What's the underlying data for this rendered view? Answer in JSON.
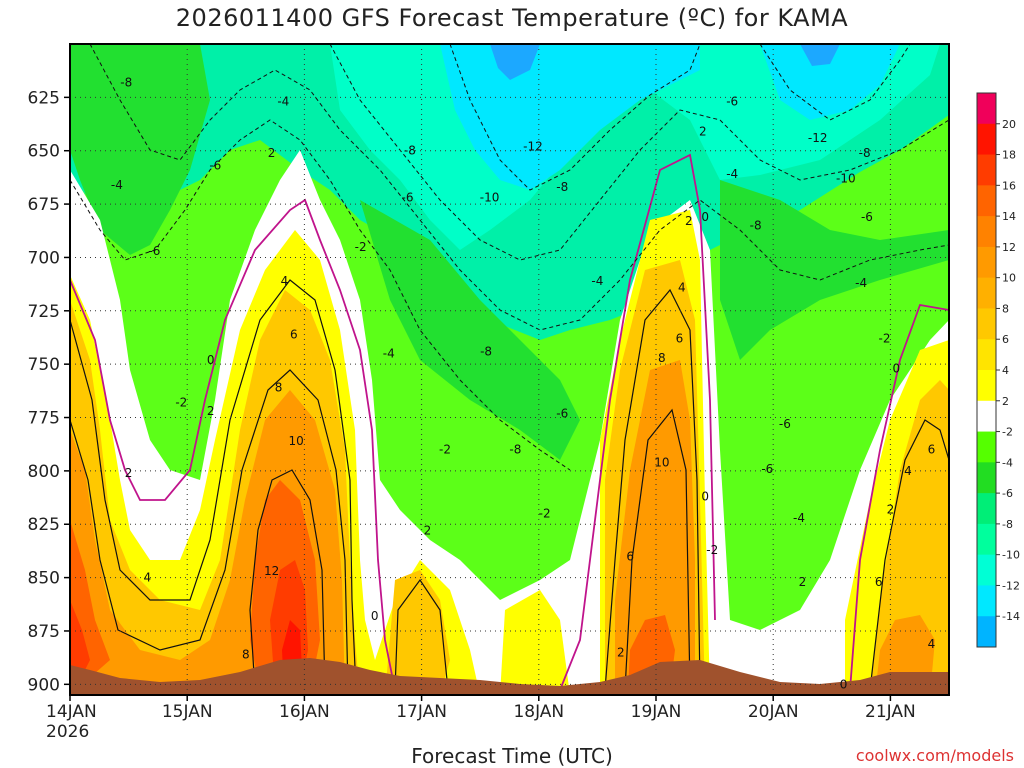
{
  "chart_data": {
    "type": "heatmap",
    "title": "2026011400 GFS Forecast Temperature (ºC) for KAMA",
    "xlabel": "Forecast Time (UTC)",
    "ylabel": "",
    "x_ticks": [
      "14JAN",
      "15JAN",
      "16JAN",
      "17JAN",
      "18JAN",
      "19JAN",
      "20JAN",
      "21JAN"
    ],
    "x_year": "2026",
    "x_range_days": [
      0,
      7.5
    ],
    "y_ticks": [
      625,
      650,
      675,
      700,
      725,
      750,
      775,
      800,
      825,
      850,
      875,
      900
    ],
    "y_range_hpa": [
      600,
      905
    ],
    "colorbar_labels": [
      20,
      18,
      16,
      14,
      12,
      10,
      8,
      6,
      4,
      2,
      -2,
      -4,
      -6,
      -8,
      -10,
      -12,
      -14
    ],
    "colorbar_colors": [
      "#f0005a",
      "#ff1400",
      "#ff3c00",
      "#ff6400",
      "#ff8200",
      "#ff9a00",
      "#ffb000",
      "#ffc800",
      "#ffe400",
      "#ffff00",
      "#ffffff",
      "#55ff00",
      "#22dd22",
      "#00ee77",
      "#00ff9d",
      "#00ffd5",
      "#00e8ff",
      "#00b4ff"
    ],
    "contour_labels": [
      {
        "x": 0.48,
        "y": 618,
        "v": "-8"
      },
      {
        "x": 1.82,
        "y": 627,
        "v": "-4"
      },
      {
        "x": 1.72,
        "y": 651,
        "v": "2"
      },
      {
        "x": 1.24,
        "y": 657,
        "v": "-6"
      },
      {
        "x": 0.4,
        "y": 666,
        "v": "-4"
      },
      {
        "x": 0.72,
        "y": 697,
        "v": "-6"
      },
      {
        "x": 2.48,
        "y": 695,
        "v": "-2"
      },
      {
        "x": 2.9,
        "y": 650,
        "v": "-8"
      },
      {
        "x": 2.88,
        "y": 672,
        "v": "-6"
      },
      {
        "x": 3.58,
        "y": 672,
        "v": "-10"
      },
      {
        "x": 3.95,
        "y": 648,
        "v": "-12"
      },
      {
        "x": 4.2,
        "y": 667,
        "v": "-8"
      },
      {
        "x": 4.5,
        "y": 711,
        "v": "-4"
      },
      {
        "x": 5.65,
        "y": 627,
        "v": "-6"
      },
      {
        "x": 5.4,
        "y": 641,
        "v": "2"
      },
      {
        "x": 5.65,
        "y": 661,
        "v": "-4"
      },
      {
        "x": 5.28,
        "y": 683,
        "v": "2"
      },
      {
        "x": 5.42,
        "y": 681,
        "v": "0"
      },
      {
        "x": 5.85,
        "y": 685,
        "v": "-8"
      },
      {
        "x": 6.38,
        "y": 644,
        "v": "-12"
      },
      {
        "x": 6.78,
        "y": 651,
        "v": "-8"
      },
      {
        "x": 6.62,
        "y": 663,
        "v": "-10"
      },
      {
        "x": 6.8,
        "y": 681,
        "v": "-6"
      },
      {
        "x": 6.75,
        "y": 712,
        "v": "-4"
      },
      {
        "x": 6.95,
        "y": 738,
        "v": "-2"
      },
      {
        "x": 7.05,
        "y": 752,
        "v": "0"
      },
      {
        "x": 1.83,
        "y": 711,
        "v": "4"
      },
      {
        "x": 1.91,
        "y": 736,
        "v": "6"
      },
      {
        "x": 1.78,
        "y": 761,
        "v": "8"
      },
      {
        "x": 1.93,
        "y": 786,
        "v": "10"
      },
      {
        "x": 1.72,
        "y": 847,
        "v": "12"
      },
      {
        "x": 1.5,
        "y": 886,
        "v": "8"
      },
      {
        "x": 1.2,
        "y": 748,
        "v": "0"
      },
      {
        "x": 0.95,
        "y": 768,
        "v": "-2"
      },
      {
        "x": 1.2,
        "y": 772,
        "v": "2"
      },
      {
        "x": 0.5,
        "y": 801,
        "v": "2"
      },
      {
        "x": 0.66,
        "y": 850,
        "v": "4"
      },
      {
        "x": 2.72,
        "y": 745,
        "v": "-4"
      },
      {
        "x": 3.55,
        "y": 744,
        "v": "-8"
      },
      {
        "x": 3.2,
        "y": 790,
        "v": "-2"
      },
      {
        "x": 3.8,
        "y": 790,
        "v": "-8"
      },
      {
        "x": 4.2,
        "y": 773,
        "v": "-6"
      },
      {
        "x": 4.05,
        "y": 820,
        "v": "-2"
      },
      {
        "x": 3.05,
        "y": 828,
        "v": "2"
      },
      {
        "x": 2.6,
        "y": 868,
        "v": "0"
      },
      {
        "x": 5.22,
        "y": 714,
        "v": "4"
      },
      {
        "x": 5.2,
        "y": 738,
        "v": "6"
      },
      {
        "x": 5.05,
        "y": 747,
        "v": "8"
      },
      {
        "x": 5.05,
        "y": 796,
        "v": "10"
      },
      {
        "x": 4.78,
        "y": 840,
        "v": "6"
      },
      {
        "x": 4.7,
        "y": 885,
        "v": "2"
      },
      {
        "x": 5.42,
        "y": 812,
        "v": "0"
      },
      {
        "x": 5.48,
        "y": 837,
        "v": "-2"
      },
      {
        "x": 5.95,
        "y": 799,
        "v": "-6"
      },
      {
        "x": 6.1,
        "y": 778,
        "v": "-6"
      },
      {
        "x": 6.22,
        "y": 822,
        "v": "-4"
      },
      {
        "x": 6.25,
        "y": 852,
        "v": "2"
      },
      {
        "x": 6.6,
        "y": 900,
        "v": "0"
      },
      {
        "x": 7.0,
        "y": 818,
        "v": "2"
      },
      {
        "x": 7.15,
        "y": 800,
        "v": "4"
      },
      {
        "x": 7.35,
        "y": 790,
        "v": "6"
      },
      {
        "x": 6.9,
        "y": 852,
        "v": "6"
      },
      {
        "x": 7.35,
        "y": 881,
        "v": "4"
      }
    ]
  },
  "footer": {
    "credit": "coolwx.com/models"
  }
}
